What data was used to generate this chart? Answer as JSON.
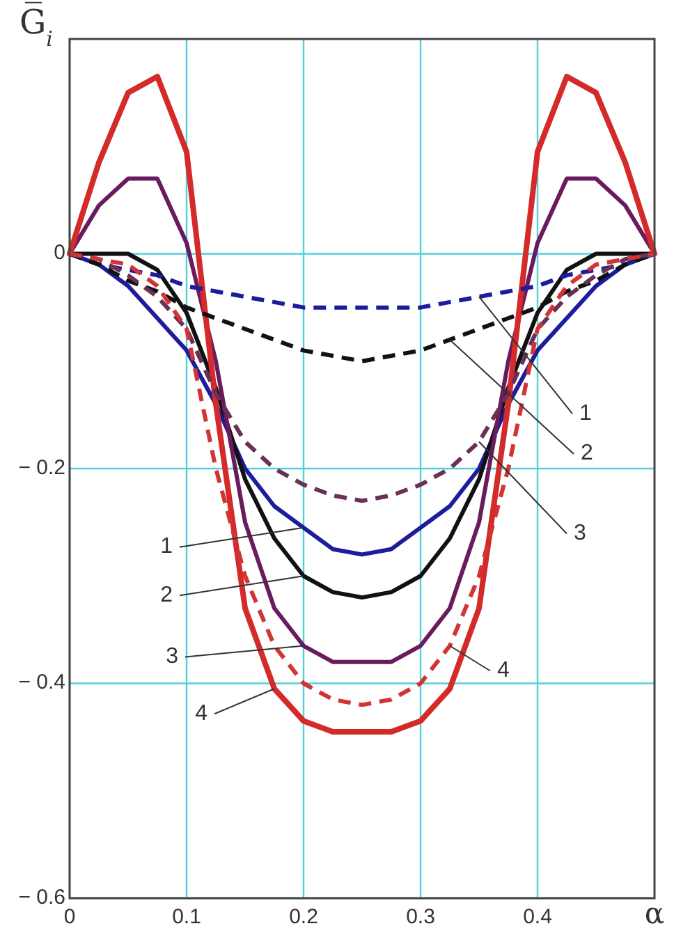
{
  "chart_data": {
    "type": "line",
    "xlabel": "α",
    "ylabel": "G̅$_{i}$",
    "x": [
      0,
      0.025,
      0.05,
      0.075,
      0.1,
      0.125,
      0.15,
      0.175,
      0.2,
      0.225,
      0.25,
      0.275,
      0.3,
      0.325,
      0.35,
      0.375,
      0.4,
      0.425,
      0.45,
      0.475,
      0.5
    ],
    "xlim": [
      0,
      0.5
    ],
    "ylim": [
      -0.6,
      0.2
    ],
    "xticks": [
      0,
      0.1,
      0.2,
      0.3,
      0.4
    ],
    "yticks": [
      0,
      {
        "value": -0.2,
        "label": "− 0.2"
      },
      {
        "value": -0.4,
        "label": "− 0.4"
      },
      {
        "value": -0.6,
        "label": "− 0.6"
      }
    ],
    "grid": true,
    "series": [
      {
        "color": "#1c1c9c",
        "line_style": "solid",
        "values": [
          0,
          -0.01,
          -0.03,
          -0.06,
          -0.09,
          -0.14,
          -0.2,
          -0.235,
          -0.255,
          -0.275,
          -0.28,
          -0.275,
          -0.255,
          -0.235,
          -0.2,
          -0.14,
          -0.09,
          -0.06,
          -0.03,
          -0.01,
          0
        ]
      },
      {
        "color": "#111111",
        "line_style": "solid",
        "values": [
          0,
          0,
          0,
          -0.015,
          -0.055,
          -0.125,
          -0.21,
          -0.265,
          -0.3,
          -0.315,
          -0.32,
          -0.315,
          -0.3,
          -0.265,
          -0.21,
          -0.125,
          -0.055,
          -0.015,
          0,
          0,
          0
        ]
      },
      {
        "color": "#6a1b5e",
        "line_style": "solid",
        "values": [
          0,
          0.045,
          0.07,
          0.07,
          0.01,
          -0.1,
          -0.25,
          -0.33,
          -0.365,
          -0.38,
          -0.38,
          -0.38,
          -0.365,
          -0.33,
          -0.25,
          -0.1,
          0.01,
          0.07,
          0.07,
          0.045,
          0
        ]
      },
      {
        "color": "#d42a2a",
        "line_style": "solid",
        "values": [
          0,
          0.085,
          0.15,
          0.165,
          0.095,
          -0.14,
          -0.33,
          -0.405,
          -0.435,
          -0.445,
          -0.445,
          -0.445,
          -0.435,
          -0.405,
          -0.33,
          -0.14,
          0.095,
          0.165,
          0.15,
          0.085,
          0
        ]
      },
      {
        "color": "#1c1c9c",
        "line_style": "dashed",
        "values": [
          0,
          -0.01,
          -0.015,
          -0.02,
          -0.03,
          -0.035,
          -0.04,
          -0.045,
          -0.05,
          -0.05,
          -0.05,
          -0.05,
          -0.05,
          -0.045,
          -0.04,
          -0.035,
          -0.03,
          -0.02,
          -0.015,
          -0.01,
          0
        ]
      },
      {
        "color": "#111111",
        "line_style": "dashed",
        "values": [
          0,
          -0.01,
          -0.025,
          -0.035,
          -0.05,
          -0.06,
          -0.07,
          -0.08,
          -0.09,
          -0.095,
          -0.1,
          -0.095,
          -0.09,
          -0.08,
          -0.07,
          -0.06,
          -0.05,
          -0.035,
          -0.025,
          -0.01,
          0
        ]
      },
      {
        "color": "#6b3058",
        "line_style": "dashed",
        "values": [
          0,
          -0.005,
          -0.02,
          -0.04,
          -0.07,
          -0.13,
          -0.175,
          -0.2,
          -0.215,
          -0.225,
          -0.23,
          -0.225,
          -0.215,
          -0.2,
          -0.175,
          -0.13,
          -0.07,
          -0.04,
          -0.02,
          -0.005,
          0
        ]
      },
      {
        "color": "#d23434",
        "line_style": "dashed",
        "values": [
          0,
          -0.005,
          -0.01,
          -0.03,
          -0.07,
          -0.2,
          -0.3,
          -0.365,
          -0.4,
          -0.415,
          -0.42,
          -0.415,
          -0.4,
          -0.365,
          -0.3,
          -0.2,
          -0.07,
          -0.03,
          -0.01,
          -0.005,
          0
        ]
      }
    ],
    "annotations": [
      {
        "text": "1",
        "x": 0.2,
        "y": -0.255
      },
      {
        "text": "2",
        "x": 0.2,
        "y": -0.3
      },
      {
        "text": "3",
        "x": 0.2,
        "y": -0.365
      },
      {
        "text": "4",
        "x": 0.175,
        "y": -0.405
      },
      {
        "text": "1",
        "x": 0.35,
        "y": -0.04
      },
      {
        "text": "2",
        "x": 0.325,
        "y": -0.08
      },
      {
        "text": "3",
        "x": 0.35,
        "y": -0.175
      },
      {
        "text": "4",
        "x": 0.325,
        "y": -0.365
      }
    ]
  }
}
